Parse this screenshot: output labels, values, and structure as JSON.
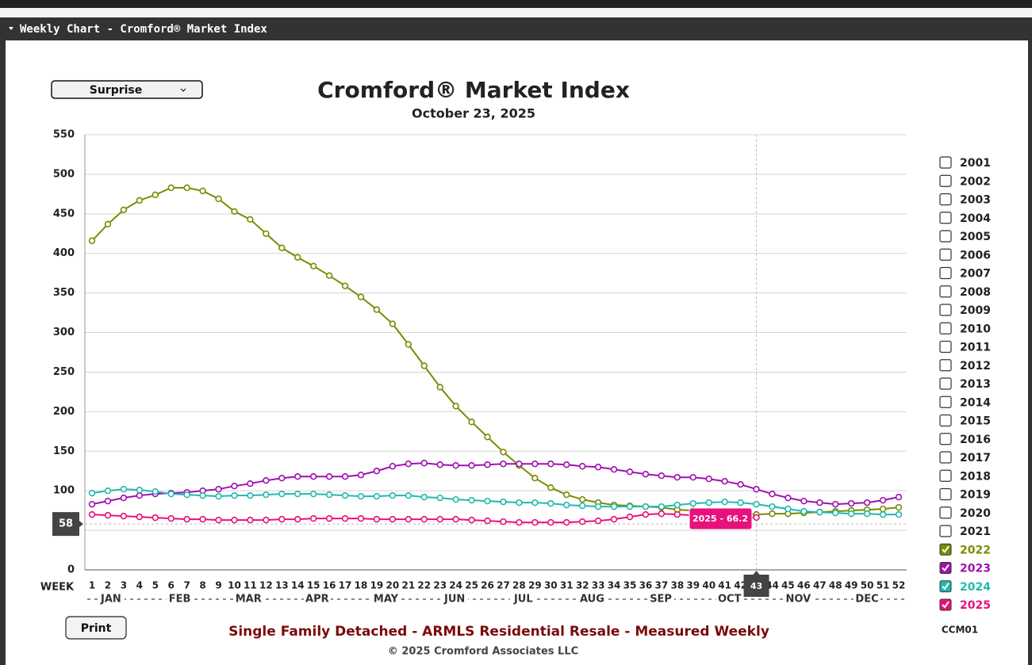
{
  "panel_title": "Weekly Chart - Cromford® Market Index",
  "selector": "Surprise",
  "print_button": "Print",
  "footer": {
    "description": "Single Family Detached - ARMLS Residential Resale - Measured Weekly",
    "copyright": "© 2025 Cromford Associates LLC",
    "code": "CCM01"
  },
  "legend_items": [
    "2001",
    "2002",
    "2003",
    "2004",
    "2005",
    "2006",
    "2007",
    "2008",
    "2009",
    "2010",
    "2011",
    "2012",
    "2013",
    "2014",
    "2015",
    "2016",
    "2017",
    "2018",
    "2019",
    "2020",
    "2021"
  ],
  "chart_data": {
    "type": "line",
    "title": "Cromford® Market Index",
    "subtitle": "October 23, 2025",
    "x_label": "WEEK",
    "categories": [
      "1",
      "2",
      "3",
      "4",
      "5",
      "6",
      "7",
      "8",
      "9",
      "10",
      "11",
      "12",
      "13",
      "14",
      "15",
      "16",
      "17",
      "18",
      "19",
      "20",
      "21",
      "22",
      "23",
      "24",
      "25",
      "26",
      "27",
      "28",
      "29",
      "30",
      "31",
      "32",
      "33",
      "34",
      "35",
      "36",
      "37",
      "38",
      "39",
      "40",
      "41",
      "42",
      "43",
      "44",
      "45",
      "46",
      "47",
      "48",
      "49",
      "50",
      "51",
      "52"
    ],
    "months": [
      "JAN",
      "FEB",
      "MAR",
      "APR",
      "MAY",
      "JUN",
      "JUL",
      "AUG",
      "SEP",
      "OCT",
      "NOV",
      "DEC"
    ],
    "ylim": [
      0,
      550
    ],
    "yticks": [
      0,
      50,
      100,
      150,
      200,
      250,
      300,
      350,
      400,
      450,
      500,
      550
    ],
    "grid": true,
    "series": [
      {
        "name": "2022",
        "color": "#7d8a00",
        "values": [
          416,
          437,
          455,
          467,
          474,
          483,
          483,
          479,
          469,
          453,
          443,
          425,
          407,
          395,
          384,
          372,
          359,
          345,
          329,
          311,
          285,
          258,
          231,
          207,
          187,
          168,
          149,
          132,
          116,
          104,
          95,
          89,
          85,
          82,
          81,
          80,
          79,
          76,
          75,
          73,
          72,
          71,
          70,
          71,
          71,
          72,
          73,
          74,
          75,
          76,
          77,
          79
        ]
      },
      {
        "name": "2023",
        "color": "#a010b0",
        "values": [
          83,
          87,
          91,
          94,
          96,
          97,
          98,
          100,
          102,
          106,
          109,
          113,
          116,
          118,
          118,
          118,
          118,
          120,
          125,
          131,
          134,
          135,
          133,
          132,
          132,
          133,
          134,
          134,
          134,
          134,
          133,
          131,
          130,
          127,
          124,
          121,
          119,
          117,
          117,
          115,
          112,
          108,
          102,
          96,
          91,
          87,
          85,
          83,
          84,
          85,
          88,
          92
        ]
      },
      {
        "name": "2024",
        "color": "#22b8b0",
        "values": [
          97,
          100,
          102,
          101,
          99,
          96,
          95,
          94,
          93,
          94,
          94,
          95,
          96,
          96,
          96,
          95,
          94,
          93,
          93,
          94,
          94,
          92,
          91,
          89,
          88,
          87,
          86,
          85,
          85,
          84,
          82,
          81,
          80,
          80,
          80,
          80,
          80,
          82,
          84,
          85,
          86,
          85,
          83,
          80,
          77,
          74,
          73,
          72,
          71,
          71,
          70,
          70
        ]
      },
      {
        "name": "2025",
        "color": "#e8107a",
        "values": [
          70,
          69,
          68,
          67,
          66,
          65,
          64,
          64,
          63,
          63,
          63,
          63,
          64,
          64,
          65,
          65,
          65,
          65,
          64,
          64,
          64,
          64,
          64,
          64,
          63,
          62,
          61,
          60,
          60,
          60,
          60,
          61,
          62,
          64,
          67,
          70,
          71,
          70,
          69,
          68,
          67,
          67,
          66.2,
          null,
          null,
          null,
          null,
          null,
          null,
          null,
          null,
          null
        ]
      }
    ],
    "tooltip": "2025 - 66.2",
    "crosshair": {
      "x": 43,
      "y": 58
    }
  }
}
